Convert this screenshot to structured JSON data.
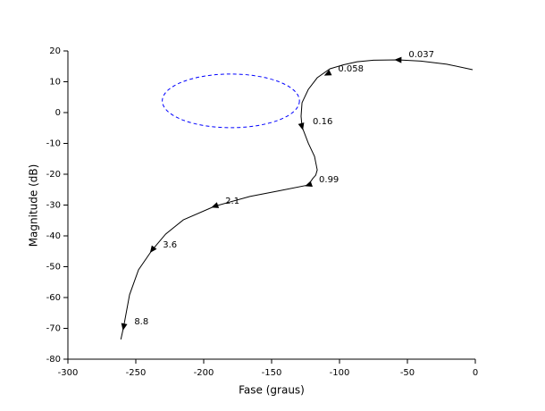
{
  "chart_data": {
    "type": "line",
    "xlabel": "Fase (graus)",
    "ylabel": "Magnitude (dB)",
    "x": [
      -2,
      -21,
      -40,
      -57,
      -75,
      -87,
      -97,
      -107,
      -116.4,
      -123,
      -127.6,
      -128.3,
      -127.6,
      -123,
      -118.4,
      -116.4,
      -117.5,
      -119.7,
      -123,
      -146,
      -166,
      -192,
      -215,
      -228,
      -238,
      -248,
      -254.6,
      -259,
      -261
    ],
    "series": [
      {
        "name": "",
        "color": "#000000",
        "values": [
          13.9,
          15.7,
          16.7,
          17.1,
          17.0,
          16.5,
          15.5,
          14.2,
          11.3,
          7.5,
          3.2,
          -1.2,
          -4.6,
          -9.9,
          -14.2,
          -18.6,
          -20.3,
          -21.4,
          -23.5,
          -25.5,
          -27.2,
          -30.4,
          -34.8,
          -39.4,
          -44.6,
          -51,
          -59.1,
          -69.6,
          -73.6
        ]
      }
    ],
    "annotations": [
      {
        "text": "0.037",
        "x": -57,
        "y": 17.1
      },
      {
        "text": "0.058",
        "x": -109,
        "y": 12.5
      },
      {
        "text": "0.16",
        "x": -127.6,
        "y": -4.6
      },
      {
        "text": "0.99",
        "x": -123,
        "y": -23.5
      },
      {
        "text": "2.1",
        "x": -192,
        "y": -30.4
      },
      {
        "text": "3.6",
        "x": -238,
        "y": -44.6
      },
      {
        "text": "8.8",
        "x": -259,
        "y": -69.6
      }
    ],
    "ellipse": {
      "color": "#0000ff",
      "cx": -180,
      "cy": 3.8,
      "rx": 50.5,
      "ry": 8.7
    },
    "xlim": [
      -300,
      0
    ],
    "xticks": [
      -300,
      -250,
      -200,
      -150,
      -100,
      -50,
      0
    ],
    "ylim": [
      -80,
      20
    ],
    "yticks": [
      -80,
      -70,
      -60,
      -50,
      -40,
      -30,
      -20,
      -10,
      0,
      10,
      20
    ]
  }
}
